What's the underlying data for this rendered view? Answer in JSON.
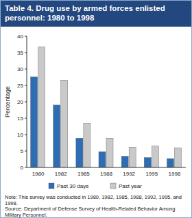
{
  "chart_data": {
    "type": "bar",
    "title": "Table 4. Drug use by armed forces enlisted personnel: 1980 to 1998",
    "y_label": "Percentage",
    "categories": [
      "1980",
      "1982",
      "1985",
      "1988",
      "1992",
      "1995",
      "1998"
    ],
    "series": [
      {
        "name": "Past 30 days",
        "color": "#2e6db4",
        "values": [
          27.6,
          19.0,
          8.9,
          4.8,
          3.4,
          3.0,
          2.7
        ]
      },
      {
        "name": "Past year",
        "color": "#c9c9c9",
        "values": [
          36.7,
          26.6,
          13.4,
          8.9,
          6.2,
          6.5,
          6.0
        ]
      }
    ],
    "ylim": [
      0,
      40
    ],
    "yticks": [
      0,
      5,
      10,
      15,
      20,
      25,
      30,
      35,
      40
    ],
    "grid": false,
    "legend": "bottom",
    "note": "Note: This survey was conducted in 1980, 1982, 1985, 1988, 1992, 1995, and 1998.",
    "source": "Source: Department of Defense Survey of Health-Related Behavior Among Military Personnel."
  }
}
